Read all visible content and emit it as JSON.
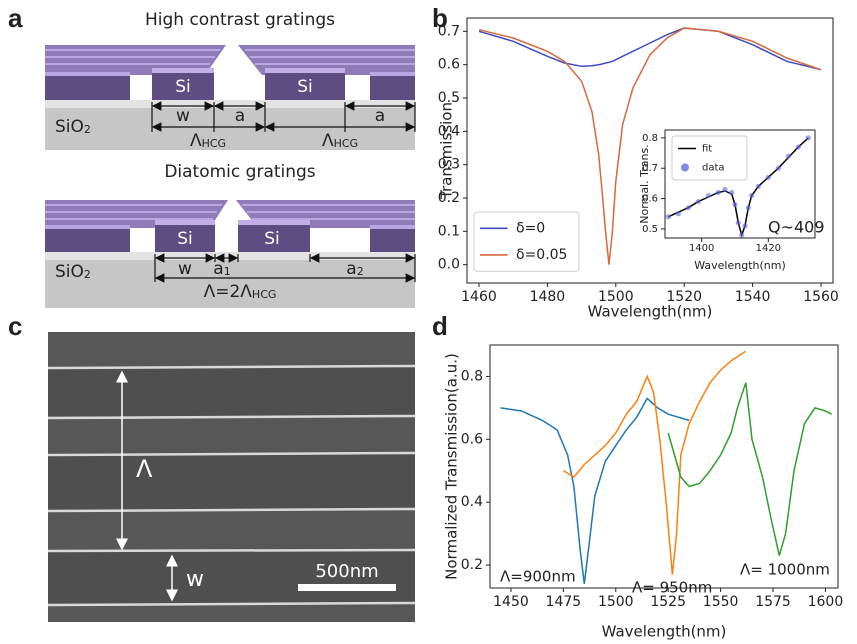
{
  "panel_labels": [
    "a",
    "b",
    "c",
    "d"
  ],
  "panel_a": {
    "hcg": {
      "title": "High contrast gratings",
      "si": [
        "Si",
        "Si"
      ],
      "substrate": {
        "main": "SiO",
        "sub": "2"
      },
      "w": "w",
      "a": [
        "a",
        "a"
      ],
      "period": [
        {
          "main": "Λ",
          "sub": "HCG"
        },
        {
          "main": "Λ",
          "sub": "HCG"
        }
      ]
    },
    "diatomic": {
      "title": "Diatomic gratings",
      "si": [
        "Si",
        "Si"
      ],
      "substrate": {
        "main": "SiO",
        "sub": "2"
      },
      "w": "w",
      "a1": {
        "main": "a",
        "sub": "1"
      },
      "a2": {
        "main": "a",
        "sub": "2"
      },
      "period": {
        "main": "Λ=2Λ",
        "sub": "HCG"
      }
    }
  },
  "panel_c": {
    "period": "Λ",
    "width": "w",
    "scale_bar": "500nm"
  },
  "chart_data": [
    {
      "type": "line",
      "xlabel": "Wavelength(nm)",
      "ylabel": "Transmission",
      "legend": "lower left",
      "xlim": [
        1456.5,
        1563.5
      ],
      "ylim": [
        -0.055,
        0.74
      ],
      "xticks": [
        1460,
        1480,
        1500,
        1520,
        1540,
        1560
      ],
      "yticks": [
        {
          "value": 0,
          "label": "0.0"
        },
        0.1,
        0.2,
        0.3,
        0.4,
        0.5,
        0.6,
        0.7
      ],
      "x": [
        1460,
        1470,
        1480,
        1485,
        1490,
        1493,
        1495,
        1496,
        1497,
        1498,
        1499,
        1500,
        1502,
        1505,
        1510,
        1515,
        1520,
        1530,
        1540,
        1550,
        1560
      ],
      "series": [
        {
          "name": "δ=0",
          "color": "#3d4cc4",
          "values": [
            0.7,
            0.67,
            0.625,
            0.605,
            0.595,
            0.597,
            0.6,
            0.602,
            0.605,
            0.607,
            0.61,
            0.615,
            0.625,
            0.64,
            0.665,
            0.69,
            0.71,
            0.7,
            0.66,
            0.61,
            0.585
          ]
        },
        {
          "name": "δ=0.05",
          "color": "#d8693c",
          "values": [
            0.705,
            0.68,
            0.64,
            0.61,
            0.55,
            0.46,
            0.33,
            0.22,
            0.1,
            0.0,
            0.1,
            0.25,
            0.42,
            0.53,
            0.63,
            0.68,
            0.71,
            0.7,
            0.67,
            0.62,
            0.585
          ]
        }
      ]
    },
    {
      "type": "line",
      "xlabel": "Wavelength(nm)",
      "ylabel": "Normal. Trans.",
      "legend": "upper left",
      "annotation": "Q~409",
      "xlim": [
        1389,
        1434
      ],
      "ylim": [
        0.47,
        0.826
      ],
      "xticks": [
        1400,
        1420
      ],
      "yticks": [
        0.5,
        0.6,
        0.7,
        0.8
      ],
      "x": [
        1390,
        1393,
        1396,
        1399,
        1402,
        1405,
        1407,
        1409,
        1410,
        1411,
        1412,
        1413,
        1414,
        1415,
        1417,
        1420,
        1423,
        1426,
        1429,
        1432
      ],
      "series": [
        {
          "name": "fit",
          "color": "#000000",
          "values": [
            0.54,
            0.555,
            0.57,
            0.59,
            0.605,
            0.62,
            0.625,
            0.615,
            0.58,
            0.52,
            0.48,
            0.51,
            0.57,
            0.61,
            0.64,
            0.67,
            0.7,
            0.735,
            0.77,
            0.8
          ]
        },
        {
          "name": "data",
          "color": "#5b6be0",
          "marker": "scatter",
          "values": [
            0.54,
            0.55,
            0.57,
            0.59,
            0.61,
            0.62,
            0.63,
            0.62,
            0.58,
            0.52,
            0.48,
            0.51,
            0.57,
            0.61,
            0.64,
            0.67,
            0.7,
            0.74,
            0.77,
            0.8
          ]
        }
      ]
    },
    {
      "type": "line",
      "xlabel": "Wavelength(nm)",
      "ylabel": "Normalized Transmission(a.u.)",
      "xlim": [
        1440,
        1606
      ],
      "ylim": [
        0.127,
        0.9
      ],
      "xticks": [
        1450,
        1475,
        1500,
        1525,
        1550,
        1575,
        1600
      ],
      "yticks": [
        0.2,
        0.4,
        0.6,
        0.8
      ],
      "series": [
        {
          "name": "Λ=900nm",
          "color": "#1f77b4",
          "x": [
            1445,
            1455,
            1465,
            1472,
            1477,
            1480,
            1483,
            1485,
            1487,
            1490,
            1495,
            1500,
            1505,
            1510,
            1515,
            1520,
            1525,
            1530,
            1535
          ],
          "values": [
            0.7,
            0.69,
            0.66,
            0.63,
            0.55,
            0.45,
            0.25,
            0.14,
            0.25,
            0.42,
            0.53,
            0.58,
            0.63,
            0.67,
            0.73,
            0.7,
            0.68,
            0.67,
            0.66
          ]
        },
        {
          "name": "Λ= 950nm",
          "color": "#ff7f0e",
          "x": [
            1475,
            1480,
            1485,
            1490,
            1495,
            1500,
            1505,
            1510,
            1515,
            1518,
            1521,
            1524,
            1527,
            1529,
            1531,
            1535,
            1540,
            1545,
            1550,
            1555,
            1562
          ],
          "values": [
            0.5,
            0.48,
            0.52,
            0.55,
            0.58,
            0.62,
            0.68,
            0.72,
            0.8,
            0.75,
            0.6,
            0.4,
            0.17,
            0.3,
            0.55,
            0.65,
            0.72,
            0.78,
            0.82,
            0.85,
            0.88
          ]
        },
        {
          "name": "Λ= 1000nm",
          "color": "#2ca02c",
          "x": [
            1525,
            1528,
            1531,
            1535,
            1540,
            1545,
            1550,
            1555,
            1558,
            1562,
            1565,
            1570,
            1574,
            1578,
            1581,
            1585,
            1590,
            1595,
            1600,
            1603
          ],
          "values": [
            0.62,
            0.55,
            0.48,
            0.45,
            0.46,
            0.5,
            0.55,
            0.62,
            0.7,
            0.78,
            0.6,
            0.48,
            0.35,
            0.23,
            0.3,
            0.5,
            0.65,
            0.7,
            0.69,
            0.68
          ]
        }
      ]
    }
  ]
}
